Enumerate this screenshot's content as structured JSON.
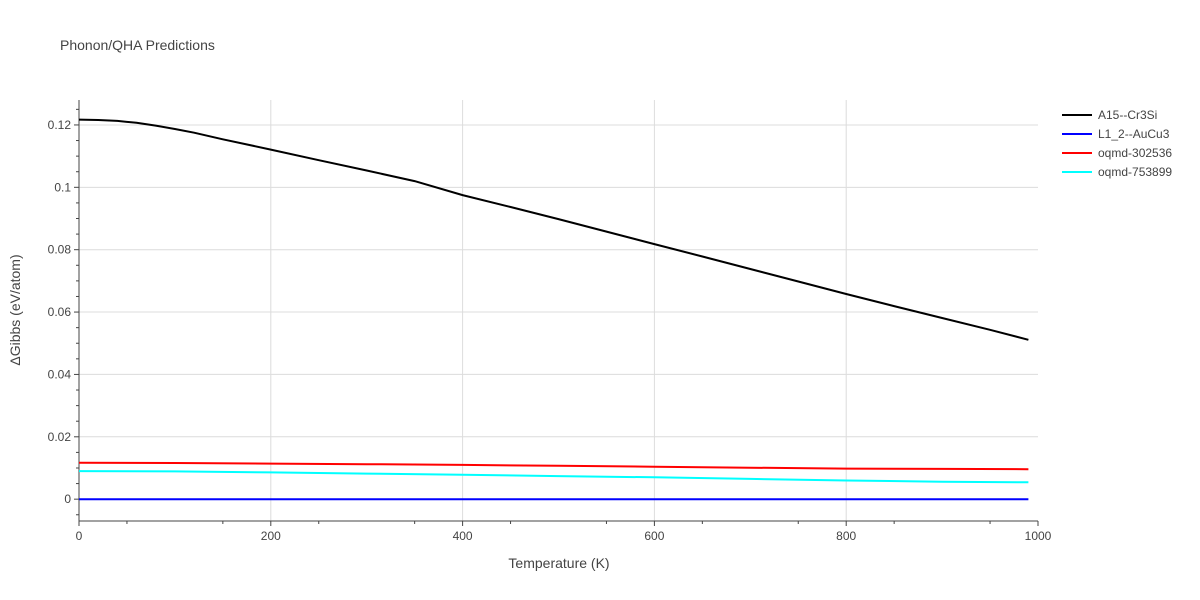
{
  "chart_data": {
    "type": "line",
    "title": "Phonon/QHA Predictions",
    "xlabel": "Temperature (K)",
    "ylabel": "ΔGibbs (eV/atom)",
    "xlim": [
      0,
      1000
    ],
    "ylim": [
      -0.007,
      0.128
    ],
    "x_ticks": [
      "0",
      "200",
      "400",
      "600",
      "800",
      "1000"
    ],
    "y_ticks": [
      "0",
      "0.02",
      "0.04",
      "0.06",
      "0.08",
      "0.1",
      "0.12"
    ],
    "grid": true,
    "legend_position": "top-right",
    "series": [
      {
        "name": "A15--Cr3Si",
        "color": "#000000",
        "x": [
          0,
          20,
          40,
          60,
          80,
          100,
          120,
          150,
          200,
          250,
          300,
          350,
          400,
          450,
          500,
          550,
          600,
          650,
          700,
          750,
          800,
          850,
          900,
          950,
          990
        ],
        "values": [
          0.1217,
          0.1216,
          0.1213,
          0.1207,
          0.1198,
          0.1187,
          0.1175,
          0.1154,
          0.1121,
          0.1087,
          0.1054,
          0.102,
          0.0975,
          0.0937,
          0.0898,
          0.0858,
          0.0818,
          0.0778,
          0.0738,
          0.0698,
          0.0658,
          0.0619,
          0.0581,
          0.0543,
          0.0511
        ]
      },
      {
        "name": "L1_2--AuCu3",
        "color": "#0000ff",
        "x": [
          0,
          990
        ],
        "values": [
          0,
          0
        ]
      },
      {
        "name": "oqmd-302536",
        "color": "#ff0000",
        "x": [
          0,
          100,
          200,
          300,
          400,
          500,
          600,
          700,
          800,
          900,
          990
        ],
        "values": [
          0.0117,
          0.0116,
          0.0114,
          0.0112,
          0.011,
          0.0107,
          0.0104,
          0.0101,
          0.0098,
          0.0097,
          0.0096
        ]
      },
      {
        "name": "oqmd-753899",
        "color": "#00ffff",
        "x": [
          0,
          100,
          200,
          300,
          400,
          500,
          600,
          700,
          800,
          900,
          990
        ],
        "values": [
          0.009,
          0.0089,
          0.0086,
          0.0082,
          0.0078,
          0.0074,
          0.007,
          0.0065,
          0.006,
          0.0056,
          0.0054
        ]
      }
    ]
  }
}
